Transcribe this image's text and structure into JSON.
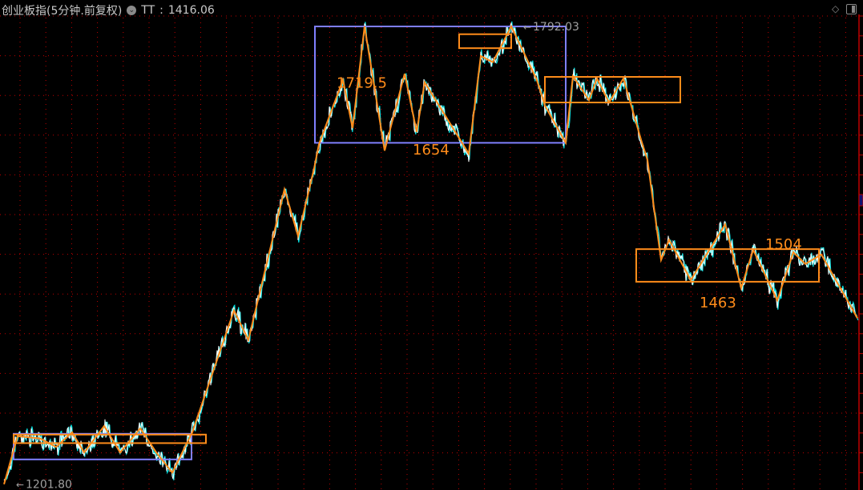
{
  "header": {
    "title": "创业板指(5分钟.前复权)",
    "indicator_label": "TT",
    "indicator_sep": ":",
    "indicator_value": "1416.06",
    "dropdown_icon": "chevron-down-circle-icon"
  },
  "toolbar_icons": [
    "diamond-icon",
    "panel-toggle-icon"
  ],
  "colors": {
    "background": "#000000",
    "grid": "#c00000",
    "price_line": "#ffffff",
    "price_up": "#ff3030",
    "price_alt": "#00e5e5",
    "zigzag": "#ff8c1a",
    "box_purple": "#8080ff",
    "box_orange": "#ff8c1a",
    "annotation_gray": "#a0a0a0"
  },
  "chart_data": {
    "type": "line",
    "title": "创业板指(5分钟.前复权)",
    "xlabel": "",
    "ylabel": "",
    "ylim": [
      1201.8,
      1792.03
    ],
    "grid": true,
    "zigzag": {
      "t": [
        5,
        22,
        50,
        70,
        90,
        105,
        130,
        150,
        175,
        195,
        215,
        240,
        292,
        310,
        355,
        372,
        392,
        398,
        428,
        440,
        455,
        480,
        505,
        520,
        530,
        585,
        600,
        615,
        638,
        670,
        680,
        706,
        715,
        735,
        745,
        760,
        778,
        800,
        808,
        825,
        835,
        862,
        905,
        925,
        940,
        970,
        990,
        1005,
        1025,
        1070
      ],
      "price": [
        1202,
        1264,
        1261,
        1250,
        1269,
        1243,
        1277,
        1243,
        1274,
        1243,
        1217,
        1269,
        1426,
        1388,
        1582,
        1522,
        1609,
        1640,
        1723,
        1661,
        1792,
        1632,
        1731,
        1656,
        1720,
        1628,
        1754,
        1746,
        1792,
        1723,
        1690,
        1642,
        1728,
        1697,
        1725,
        1694,
        1725,
        1646,
        1620,
        1491,
        1517,
        1465,
        1537,
        1455,
        1504,
        1439,
        1501,
        1486,
        1498,
        1416.06
      ]
    },
    "boxes": [
      {
        "color": "purple",
        "t": [
          17,
          239
        ],
        "price": [
          1234,
          1267
        ]
      },
      {
        "color": "purple",
        "t": [
          393,
          706
        ],
        "price": [
          1642,
          1792
        ]
      },
      {
        "color": "orange",
        "t": [
          17,
          257
        ],
        "price": [
          1255,
          1266
        ]
      },
      {
        "color": "orange",
        "t": [
          573,
          638
        ],
        "price": [
          1764,
          1782
        ]
      },
      {
        "color": "orange",
        "t": [
          680,
          849
        ],
        "price": [
          1694,
          1727
        ]
      },
      {
        "color": "orange",
        "t": [
          794,
          1022
        ],
        "price": [
          1463,
          1505
        ]
      }
    ],
    "annotations": [
      {
        "text": "1719.5",
        "t": 420,
        "price": 1713,
        "color": "orange"
      },
      {
        "text": "1654",
        "t": 515,
        "price": 1627,
        "color": "orange"
      },
      {
        "text": "1792.03",
        "t": 655,
        "price": 1787,
        "color": "gray",
        "marker": "←"
      },
      {
        "text": "1463",
        "t": 873,
        "price": 1430,
        "color": "orange"
      },
      {
        "text": "1504",
        "t": 955,
        "price": 1505,
        "color": "orange"
      },
      {
        "text": "1201.80",
        "t": 22,
        "price": 1197,
        "color": "gray",
        "marker": "←"
      }
    ]
  }
}
